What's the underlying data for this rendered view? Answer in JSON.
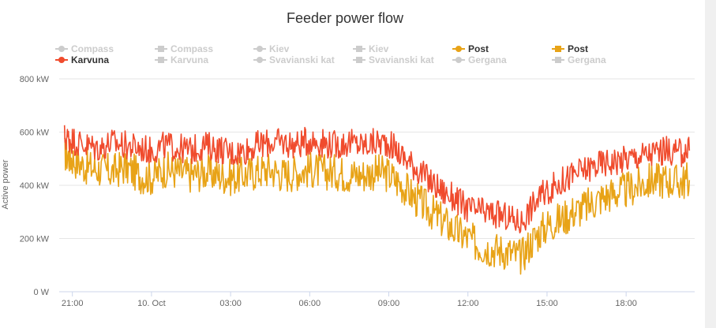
{
  "chart_data": {
    "type": "line",
    "title": "Feeder power flow",
    "ylabel": "Active power",
    "xlabel": "",
    "ylim": [
      0,
      800
    ],
    "y_ticks": [
      {
        "value": 0,
        "label": "0 W"
      },
      {
        "value": 200,
        "label": "200 kW"
      },
      {
        "value": 400,
        "label": "400 kW"
      },
      {
        "value": 600,
        "label": "600 kW"
      },
      {
        "value": 800,
        "label": "800 kW"
      }
    ],
    "xlim_hours": [
      20.5,
      44.6
    ],
    "x_ticks": [
      {
        "value": 21,
        "label": "21:00"
      },
      {
        "value": 24,
        "label": "10. Oct"
      },
      {
        "value": 27,
        "label": "03:00"
      },
      {
        "value": 30,
        "label": "06:00"
      },
      {
        "value": 33,
        "label": "09:00"
      },
      {
        "value": 36,
        "label": "12:00"
      },
      {
        "value": 39,
        "label": "15:00"
      },
      {
        "value": 42,
        "label": "18:00"
      }
    ],
    "grid": true,
    "legend_position": "top",
    "legend": [
      {
        "name": "Compass",
        "symbol": "circle",
        "active": false,
        "color": "#cccccc"
      },
      {
        "name": "Compass",
        "symbol": "square",
        "active": false,
        "color": "#cccccc"
      },
      {
        "name": "Kiev",
        "symbol": "circle",
        "active": false,
        "color": "#cccccc"
      },
      {
        "name": "Kiev",
        "symbol": "square",
        "active": false,
        "color": "#cccccc"
      },
      {
        "name": "Post",
        "symbol": "circle",
        "active": true,
        "color": "#e8a317"
      },
      {
        "name": "Post",
        "symbol": "square",
        "active": true,
        "color": "#e8a317"
      },
      {
        "name": "Karvuna",
        "symbol": "circle",
        "active": true,
        "color": "#f04b2d"
      },
      {
        "name": "Karvuna",
        "symbol": "square",
        "active": false,
        "color": "#cccccc"
      },
      {
        "name": "Svavianski kat",
        "symbol": "circle",
        "active": false,
        "color": "#cccccc"
      },
      {
        "name": "Svavianski kat",
        "symbol": "square",
        "active": false,
        "color": "#cccccc"
      },
      {
        "name": "Gergana",
        "symbol": "circle",
        "active": false,
        "color": "#cccccc"
      },
      {
        "name": "Gergana",
        "symbol": "square",
        "active": false,
        "color": "#cccccc"
      }
    ],
    "series": [
      {
        "name": "Post",
        "color": "#e8a317",
        "x": [
          20.7,
          21.0,
          21.5,
          22.0,
          22.5,
          23.0,
          23.5,
          24.0,
          24.5,
          25.0,
          25.5,
          26.0,
          26.5,
          27.0,
          27.5,
          28.0,
          28.5,
          29.0,
          29.5,
          30.0,
          30.5,
          31.0,
          31.5,
          32.0,
          32.5,
          33.0,
          33.5,
          34.0,
          34.5,
          35.0,
          35.5,
          36.0,
          36.5,
          37.0,
          37.5,
          38.0,
          38.5,
          39.0,
          39.5,
          40.0,
          40.5,
          41.0,
          41.5,
          42.0,
          42.5,
          43.0,
          43.5,
          44.0,
          44.4
        ],
        "y": [
          520,
          500,
          470,
          460,
          450,
          470,
          440,
          430,
          460,
          450,
          440,
          450,
          440,
          430,
          440,
          450,
          460,
          440,
          450,
          460,
          450,
          450,
          440,
          440,
          450,
          440,
          400,
          350,
          310,
          270,
          230,
          200,
          170,
          160,
          150,
          130,
          200,
          250,
          270,
          300,
          320,
          350,
          370,
          380,
          400,
          420,
          420,
          410,
          420
        ]
      },
      {
        "name": "Karvuna",
        "color": "#f04b2d",
        "x": [
          20.7,
          21.0,
          21.5,
          22.0,
          22.5,
          23.0,
          23.5,
          24.0,
          24.5,
          25.0,
          25.5,
          26.0,
          26.5,
          27.0,
          27.5,
          28.0,
          28.5,
          29.0,
          29.5,
          30.0,
          30.5,
          31.0,
          31.5,
          32.0,
          32.5,
          33.0,
          33.5,
          34.0,
          34.5,
          35.0,
          35.5,
          36.0,
          36.5,
          37.0,
          37.5,
          38.0,
          38.5,
          39.0,
          39.5,
          40.0,
          40.5,
          41.0,
          41.5,
          42.0,
          42.5,
          43.0,
          43.5,
          44.0,
          44.4
        ],
        "y": [
          580,
          570,
          550,
          540,
          560,
          550,
          540,
          530,
          550,
          540,
          530,
          550,
          540,
          520,
          530,
          550,
          560,
          560,
          550,
          570,
          560,
          550,
          560,
          550,
          560,
          560,
          510,
          470,
          420,
          380,
          350,
          310,
          300,
          290,
          280,
          260,
          330,
          380,
          410,
          440,
          460,
          480,
          490,
          500,
          510,
          520,
          530,
          520,
          530
        ]
      }
    ]
  }
}
